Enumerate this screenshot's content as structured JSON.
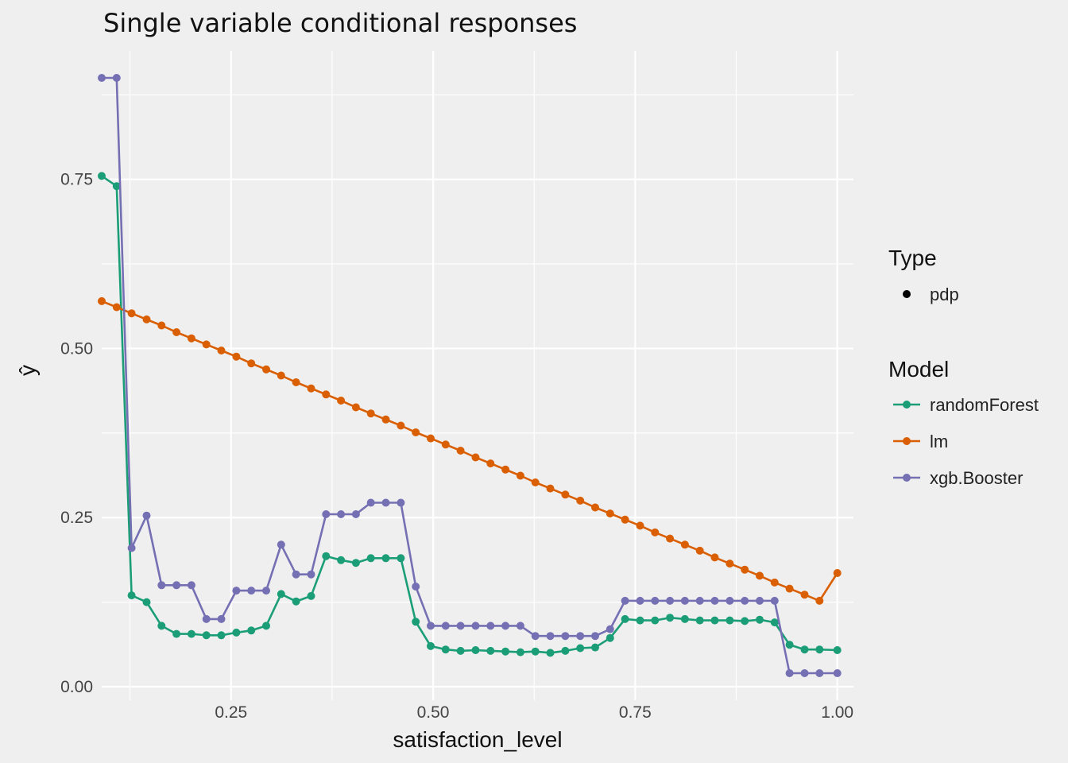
{
  "chart_data": {
    "type": "line",
    "title": "Single variable conditional responses",
    "xlabel": "satisfaction_level",
    "ylabel": "ŷ",
    "xlim": [
      0.09,
      1.02
    ],
    "ylim": [
      -0.02,
      0.94
    ],
    "x_ticks": [
      0.25,
      0.5,
      0.75,
      1.0
    ],
    "x_tick_labels": [
      "0.25",
      "0.50",
      "0.75",
      "1.00"
    ],
    "y_ticks": [
      0.0,
      0.25,
      0.5,
      0.75
    ],
    "y_tick_labels": [
      "0.00",
      "0.25",
      "0.50",
      "0.75"
    ],
    "grid": true,
    "legend_position": "right",
    "legend": {
      "type_title": "Type",
      "type_entries": [
        "pdp"
      ],
      "model_title": "Model"
    },
    "x": [
      0.09,
      0.1085,
      0.127,
      0.1455,
      0.164,
      0.1825,
      0.201,
      0.2195,
      0.238,
      0.2565,
      0.275,
      0.2935,
      0.312,
      0.3305,
      0.349,
      0.3675,
      0.386,
      0.4045,
      0.423,
      0.4415,
      0.46,
      0.4785,
      0.497,
      0.5155,
      0.534,
      0.5525,
      0.571,
      0.5895,
      0.608,
      0.6265,
      0.645,
      0.6635,
      0.682,
      0.7005,
      0.719,
      0.7375,
      0.756,
      0.7745,
      0.793,
      0.8115,
      0.83,
      0.8485,
      0.867,
      0.8855,
      0.904,
      0.9225,
      0.941,
      0.9595,
      0.978,
      1.0
    ],
    "series": [
      {
        "name": "randomForest",
        "color": "#1b9e77",
        "values": [
          0.755,
          0.74,
          0.135,
          0.125,
          0.09,
          0.078,
          0.078,
          0.076,
          0.076,
          0.08,
          0.083,
          0.09,
          0.137,
          0.126,
          0.134,
          0.193,
          0.187,
          0.183,
          0.19,
          0.19,
          0.19,
          0.096,
          0.06,
          0.055,
          0.053,
          0.054,
          0.053,
          0.052,
          0.051,
          0.052,
          0.05,
          0.053,
          0.057,
          0.058,
          0.072,
          0.1,
          0.098,
          0.098,
          0.102,
          0.1,
          0.098,
          0.098,
          0.098,
          0.097,
          0.099,
          0.095,
          0.062,
          0.055,
          0.055,
          0.054
        ]
      },
      {
        "name": "lm",
        "color": "#d95f02",
        "values": [
          0.57,
          0.561,
          0.552,
          0.543,
          0.534,
          0.524,
          0.515,
          0.506,
          0.497,
          0.488,
          0.478,
          0.469,
          0.46,
          0.45,
          0.441,
          0.432,
          0.423,
          0.413,
          0.404,
          0.395,
          0.386,
          0.376,
          0.367,
          0.358,
          0.349,
          0.339,
          0.33,
          0.321,
          0.312,
          0.302,
          0.293,
          0.284,
          0.275,
          0.265,
          0.256,
          0.247,
          0.238,
          0.228,
          0.219,
          0.21,
          0.201,
          0.191,
          0.182,
          0.173,
          0.164,
          0.154,
          0.145,
          0.136,
          0.127,
          0.168
        ]
      },
      {
        "name": "xgb.Booster",
        "color": "#7570b3",
        "values": [
          0.9,
          0.9,
          0.205,
          0.253,
          0.15,
          0.15,
          0.15,
          0.1,
          0.1,
          0.142,
          0.142,
          0.142,
          0.21,
          0.166,
          0.166,
          0.255,
          0.255,
          0.255,
          0.272,
          0.272,
          0.272,
          0.148,
          0.09,
          0.09,
          0.09,
          0.09,
          0.09,
          0.09,
          0.09,
          0.075,
          0.075,
          0.075,
          0.075,
          0.075,
          0.085,
          0.127,
          0.127,
          0.127,
          0.127,
          0.127,
          0.127,
          0.127,
          0.127,
          0.127,
          0.127,
          0.127,
          0.02,
          0.02,
          0.02,
          0.02
        ]
      }
    ]
  }
}
